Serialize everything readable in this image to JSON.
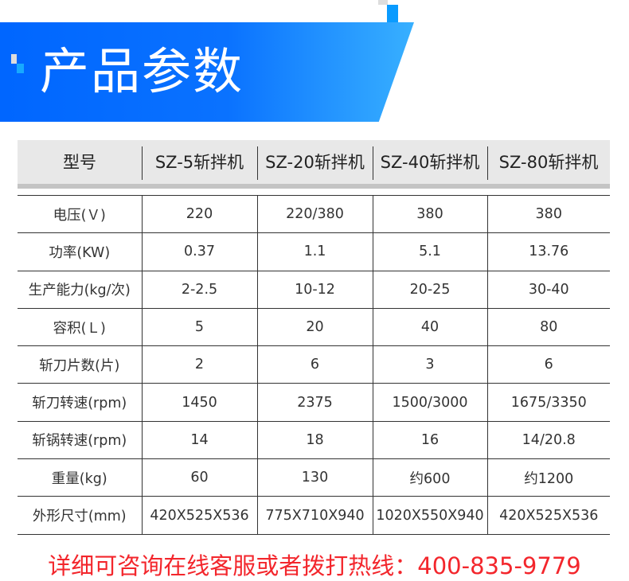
{
  "header": {
    "title": "产品参数"
  },
  "colors": {
    "banner_start": "#0066ff",
    "banner_end": "#38b0ff",
    "accent_red": "#f3262c",
    "header_bg": "#e8e8e8"
  },
  "table": {
    "columns": [
      "型号",
      "SZ-5斩拌机",
      "SZ-20斩拌机",
      "SZ-40斩拌机",
      "SZ-80斩拌机"
    ],
    "rows": [
      [
        "电压(Ｖ)",
        "220",
        "220/380",
        "380",
        "380"
      ],
      [
        "功率(KW)",
        "0.37",
        "1.1",
        "5.1",
        "13.76"
      ],
      [
        "生产能力(kg/次)",
        "2-2.5",
        "10-12",
        "20-25",
        "30-40"
      ],
      [
        "容积(Ｌ)",
        "5",
        "20",
        "40",
        "80"
      ],
      [
        "斩刀片数(片)",
        "2",
        "6",
        "3",
        "6"
      ],
      [
        "斩刀转速(rpm)",
        "1450",
        "2375",
        "1500/3000",
        "1675/3350"
      ],
      [
        "斩锅转速(rpm)",
        "14",
        "18",
        "16",
        "14/20.8"
      ],
      [
        "重量(kg)",
        "60",
        "130",
        "约600",
        "约1200"
      ],
      [
        "外形尺寸(mm)",
        "420X525X536",
        "775X710X940",
        "1020X550X940",
        "420X525X536"
      ]
    ]
  },
  "footer": {
    "text": "详细可咨询在线客服或者拨打热线：400-835-9779"
  }
}
